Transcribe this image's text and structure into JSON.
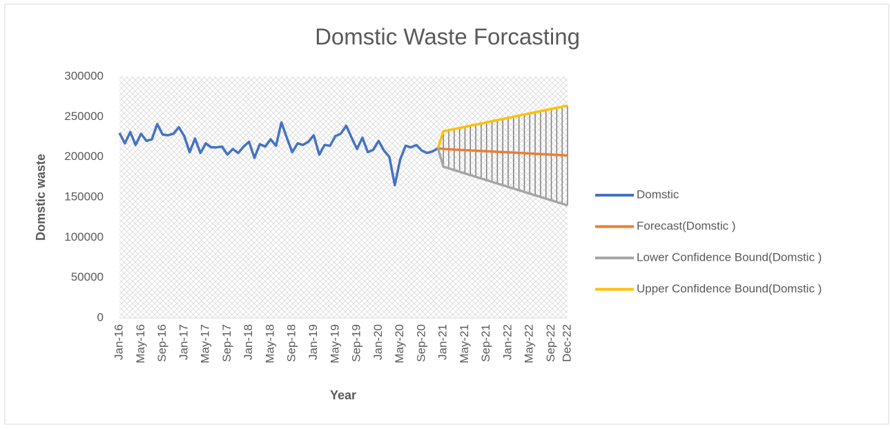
{
  "chart_data": {
    "type": "line",
    "title": "Domstic Waste Forcasting",
    "x_label": "Year",
    "y_label": "Domstic waste",
    "categories": [
      "Jan-16",
      null,
      null,
      null,
      "May-16",
      null,
      null,
      null,
      "Sep-16",
      null,
      null,
      null,
      "Jan-17",
      null,
      null,
      null,
      "May-17",
      null,
      null,
      null,
      "Sep-17",
      null,
      null,
      null,
      "Jan-18",
      null,
      null,
      null,
      "May-18",
      null,
      null,
      null,
      "Sep-18",
      null,
      null,
      null,
      "Jan-19",
      null,
      null,
      null,
      "May-19",
      null,
      null,
      null,
      "Sep-19",
      null,
      null,
      null,
      "Jan-20",
      null,
      null,
      null,
      "May-20",
      null,
      null,
      null,
      "Sep-20",
      null,
      null,
      null,
      "Jan-21",
      null,
      null,
      null,
      "May-21",
      null,
      null,
      null,
      "Sep-21",
      null,
      null,
      null,
      "Jan-22",
      null,
      null,
      null,
      "May-22",
      null,
      null,
      null,
      "Sep-22",
      null,
      null,
      "Dec-22"
    ],
    "series": [
      {
        "name": "Domstic",
        "color": "#4472c4",
        "values": [
          230000,
          217000,
          231000,
          215000,
          229000,
          220000,
          222000,
          241000,
          228000,
          227000,
          229000,
          237000,
          226000,
          206000,
          223000,
          205000,
          217000,
          212000,
          212000,
          213000,
          203000,
          210000,
          205000,
          213000,
          219000,
          199000,
          216000,
          213000,
          222000,
          214000,
          243000,
          224000,
          206000,
          217000,
          215000,
          219000,
          227000,
          203000,
          215000,
          214000,
          226000,
          229000,
          239000,
          224000,
          210000,
          224000,
          206000,
          209000,
          220000,
          208000,
          200000,
          165000,
          197000,
          214000,
          212000,
          215000,
          208000,
          205000,
          207000,
          211000,
          null,
          null,
          null,
          null,
          null,
          null,
          null,
          null,
          null,
          null,
          null,
          null,
          null,
          null,
          null,
          null,
          null,
          null,
          null,
          null,
          null,
          null,
          null,
          null
        ]
      },
      {
        "name": "Forecast(Domstic )",
        "color": "#ed7d31",
        "values": [
          null,
          null,
          null,
          null,
          null,
          null,
          null,
          null,
          null,
          null,
          null,
          null,
          null,
          null,
          null,
          null,
          null,
          null,
          null,
          null,
          null,
          null,
          null,
          null,
          null,
          null,
          null,
          null,
          null,
          null,
          null,
          null,
          null,
          null,
          null,
          null,
          null,
          null,
          null,
          null,
          null,
          null,
          null,
          null,
          null,
          null,
          null,
          null,
          null,
          null,
          null,
          null,
          null,
          null,
          null,
          null,
          null,
          null,
          null,
          211000,
          210000,
          209650,
          209300,
          208950,
          208600,
          208250,
          207900,
          207550,
          207200,
          206850,
          206500,
          206150,
          205800,
          205450,
          205100,
          204750,
          204400,
          204050,
          203700,
          203350,
          203000,
          202650,
          202300,
          201950
        ]
      },
      {
        "name": "Lower Confidence Bound(Domstic )",
        "color": "#a5a5a5",
        "values": [
          null,
          null,
          null,
          null,
          null,
          null,
          null,
          null,
          null,
          null,
          null,
          null,
          null,
          null,
          null,
          null,
          null,
          null,
          null,
          null,
          null,
          null,
          null,
          null,
          null,
          null,
          null,
          null,
          null,
          null,
          null,
          null,
          null,
          null,
          null,
          null,
          null,
          null,
          null,
          null,
          null,
          null,
          null,
          null,
          null,
          null,
          null,
          null,
          null,
          null,
          null,
          null,
          null,
          null,
          null,
          null,
          null,
          null,
          null,
          211000,
          188000,
          185910,
          183820,
          181730,
          179640,
          177550,
          175460,
          173370,
          171280,
          169190,
          167100,
          165010,
          162920,
          160830,
          158740,
          156650,
          154560,
          152470,
          150380,
          148290,
          146200,
          144110,
          142020,
          139930
        ]
      },
      {
        "name": "Upper Confidence Bound(Domstic )",
        "color": "#ffc000",
        "values": [
          null,
          null,
          null,
          null,
          null,
          null,
          null,
          null,
          null,
          null,
          null,
          null,
          null,
          null,
          null,
          null,
          null,
          null,
          null,
          null,
          null,
          null,
          null,
          null,
          null,
          null,
          null,
          null,
          null,
          null,
          null,
          null,
          null,
          null,
          null,
          null,
          null,
          null,
          null,
          null,
          null,
          null,
          null,
          null,
          null,
          null,
          null,
          null,
          null,
          null,
          null,
          null,
          null,
          null,
          null,
          null,
          null,
          null,
          null,
          211000,
          232000,
          233390,
          234780,
          236170,
          237560,
          238950,
          240340,
          241730,
          243120,
          244510,
          245900,
          247290,
          248680,
          250070,
          251460,
          252850,
          254240,
          255630,
          257020,
          258410,
          259800,
          261190,
          262580,
          263970
        ]
      }
    ],
    "ylim": [
      0,
      300000
    ],
    "yticks": [
      0,
      50000,
      100000,
      150000,
      200000,
      250000,
      300000
    ],
    "grid": false,
    "legend": "right"
  }
}
